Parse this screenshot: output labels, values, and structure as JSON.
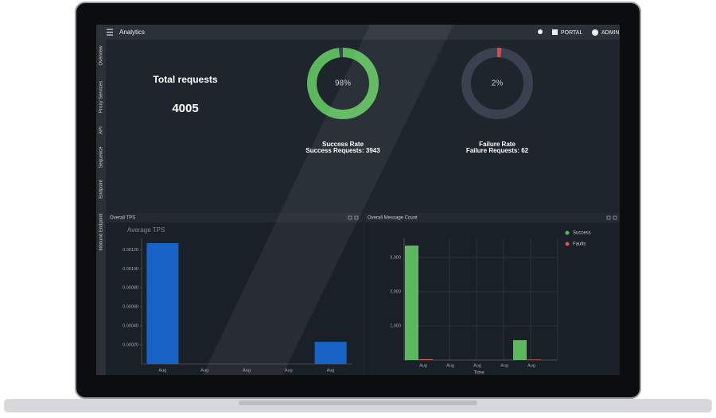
{
  "header": {
    "title": "Analytics",
    "portal": "PORTAL",
    "user": "ADMIN"
  },
  "sidebar": {
    "items": [
      "Overview",
      "Proxy Services",
      "API",
      "Sequence",
      "Endpoint",
      "Inbound Endpoint"
    ]
  },
  "summary": {
    "label": "Total requests",
    "value": 4005
  },
  "chart_data": [
    {
      "type": "donut",
      "values": [
        98
      ],
      "value_labels": [
        "98%"
      ],
      "color": "#5cb85c",
      "track_color": "#3a4150",
      "title": "Success Rate",
      "subtitle": "Success Requests: 3943"
    },
    {
      "type": "donut",
      "values": [
        2
      ],
      "value_labels": [
        "2%"
      ],
      "color": "#e04848",
      "track_color": "#3a4150",
      "title": "Failure Rate",
      "subtitle": "Failure Requests: 62"
    },
    {
      "type": "bar",
      "panel_title": "Overall TPS",
      "title": "Average TPS",
      "categories": [
        "Aug",
        "Aug",
        "Aug",
        "Aug",
        "Aug"
      ],
      "values": [
        0.00127,
        0,
        0,
        0,
        0.000233
      ],
      "color": "#1a63c6",
      "ylim": [
        0,
        0.00132
      ],
      "yticks": [
        {
          "value": 0.0002,
          "label": "0.00020"
        },
        {
          "value": 0.0004,
          "label": "0.00040"
        },
        {
          "value": 0.0006,
          "label": "0.00060"
        },
        {
          "value": 0.0008,
          "label": "0.00080"
        },
        {
          "value": 0.001,
          "label": "0.00100"
        },
        {
          "value": 0.0012,
          "label": "0.00120"
        }
      ],
      "grid": false
    },
    {
      "type": "grouped-bar",
      "panel_title": "Overall Message Count",
      "x_label": "Time",
      "categories": [
        "Aug",
        "Aug",
        "Aug",
        "Aug",
        "Aug"
      ],
      "series": [
        {
          "name": "Success",
          "color": "#5cb85c",
          "values": [
            3350,
            0,
            0,
            0,
            580
          ]
        },
        {
          "name": "Faults",
          "color": "#d9534f",
          "values": [
            25,
            0,
            0,
            0,
            15
          ]
        }
      ],
      "ylim": [
        0,
        3560
      ],
      "yticks": [
        {
          "value": 1000,
          "label": "1,000"
        },
        {
          "value": 2000,
          "label": "2,000"
        },
        {
          "value": 3000,
          "label": "3,000"
        }
      ],
      "grid": true,
      "legend": "top-right"
    }
  ]
}
